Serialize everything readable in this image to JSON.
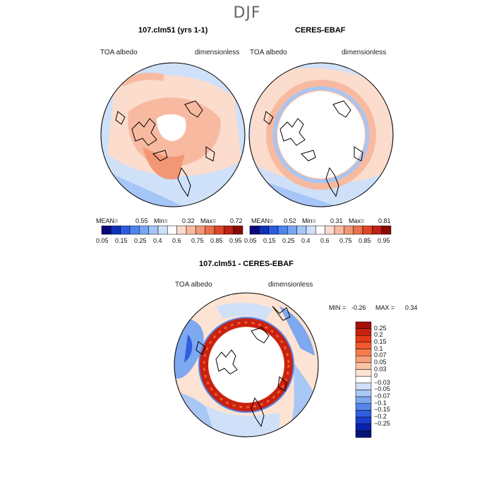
{
  "season": "DJF",
  "panels": [
    {
      "title": "107.clm51 (yrs 1-1)",
      "variable": "TOA albedo",
      "units": "dimensionless",
      "stats": {
        "mean_label": "MEAN=",
        "mean": "0.55",
        "min_label": "Min=",
        "min": "0.32",
        "max_label": "Max=",
        "max": "0.72"
      }
    },
    {
      "title": "CERES-EBAF",
      "variable": "TOA albedo",
      "units": "dimensionless",
      "stats": {
        "mean_label": "MEAN=",
        "mean": "0.52",
        "min_label": "Min=",
        "min": "0.31",
        "max_label": "Max=",
        "max": "0.81"
      }
    }
  ],
  "colorbar_abs": {
    "ticks": [
      "0.05",
      "0.15",
      "0.25",
      "0.4",
      "0.6",
      "0.75",
      "0.85",
      "0.95"
    ],
    "colors": [
      "#08087a",
      "#1030b8",
      "#2a5ce0",
      "#4d84ee",
      "#79a6f4",
      "#a5c6f7",
      "#cfe0f9",
      "#ffffff",
      "#fbdccd",
      "#f7baa0",
      "#f29775",
      "#ec714c",
      "#dd4628",
      "#bf2212",
      "#8a0a05"
    ]
  },
  "difference": {
    "title": "107.clm51 - CERES-EBAF",
    "variable": "TOA albedo",
    "units": "dimensionless",
    "min_label": "MIN =",
    "min": "-0.26",
    "max_label": "MAX =",
    "max": "0.34",
    "levels": [
      "0.25",
      "0.2",
      "0.15",
      "0.1",
      "0.07",
      "0.05",
      "0.03",
      "0",
      "−0.03",
      "−0.05",
      "−0.07",
      "−0.1",
      "−0.15",
      "−0.2",
      "−0.25"
    ],
    "colors": [
      "#a50f0a",
      "#c8210f",
      "#e43a18",
      "#f2582c",
      "#f77b4d",
      "#f9a07a",
      "#fbc4a7",
      "#fde3d3",
      "#ffffff",
      "#cfe0f8",
      "#a9c7f4",
      "#7ea8ef",
      "#5585e8",
      "#2f5fdf",
      "#1a3ed0",
      "#0c22aa",
      "#061476"
    ]
  }
}
